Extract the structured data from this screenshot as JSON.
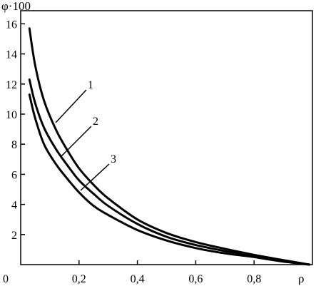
{
  "chart_data": {
    "type": "line",
    "ylabel": "φ·100",
    "xlabel": "ρ",
    "xlim": [
      0,
      1
    ],
    "ylim": [
      0,
      16.5
    ],
    "origin_label": "0",
    "x_ticks": [
      {
        "value": 0.2,
        "label": "0,2"
      },
      {
        "value": 0.4,
        "label": "0,4"
      },
      {
        "value": 0.6,
        "label": "0,6"
      },
      {
        "value": 0.8,
        "label": "0,8"
      }
    ],
    "y_ticks": [
      {
        "value": 2,
        "label": "2"
      },
      {
        "value": 4,
        "label": "4"
      },
      {
        "value": 6,
        "label": "6"
      },
      {
        "value": 8,
        "label": "8"
      },
      {
        "value": 10,
        "label": "10"
      },
      {
        "value": 12,
        "label": "12"
      },
      {
        "value": 14,
        "label": "14"
      },
      {
        "value": 16,
        "label": "16"
      }
    ],
    "grid": false,
    "series": [
      {
        "name": "1",
        "x": [
          0.03,
          0.05,
          0.08,
          0.12,
          0.16,
          0.2,
          0.25,
          0.3,
          0.4,
          0.5,
          0.6,
          0.7,
          0.8,
          0.9,
          0.99
        ],
        "y": [
          15.7,
          13.2,
          10.9,
          9.0,
          7.6,
          6.4,
          5.3,
          4.4,
          3.0,
          2.1,
          1.5,
          1.05,
          0.65,
          0.3,
          0.0
        ]
      },
      {
        "name": "2",
        "x": [
          0.03,
          0.05,
          0.08,
          0.12,
          0.16,
          0.2,
          0.25,
          0.3,
          0.4,
          0.5,
          0.6,
          0.7,
          0.8,
          0.9,
          0.99
        ],
        "y": [
          12.3,
          10.7,
          9.1,
          7.7,
          6.6,
          5.6,
          4.7,
          3.9,
          2.7,
          1.85,
          1.3,
          0.9,
          0.55,
          0.25,
          0.0
        ]
      },
      {
        "name": "3",
        "x": [
          0.03,
          0.05,
          0.08,
          0.12,
          0.16,
          0.2,
          0.25,
          0.3,
          0.4,
          0.5,
          0.6,
          0.7,
          0.8,
          0.9,
          0.99
        ],
        "y": [
          11.3,
          9.7,
          8.0,
          6.7,
          5.7,
          4.8,
          3.9,
          3.3,
          2.3,
          1.6,
          1.1,
          0.75,
          0.5,
          0.2,
          0.0
        ]
      }
    ]
  }
}
